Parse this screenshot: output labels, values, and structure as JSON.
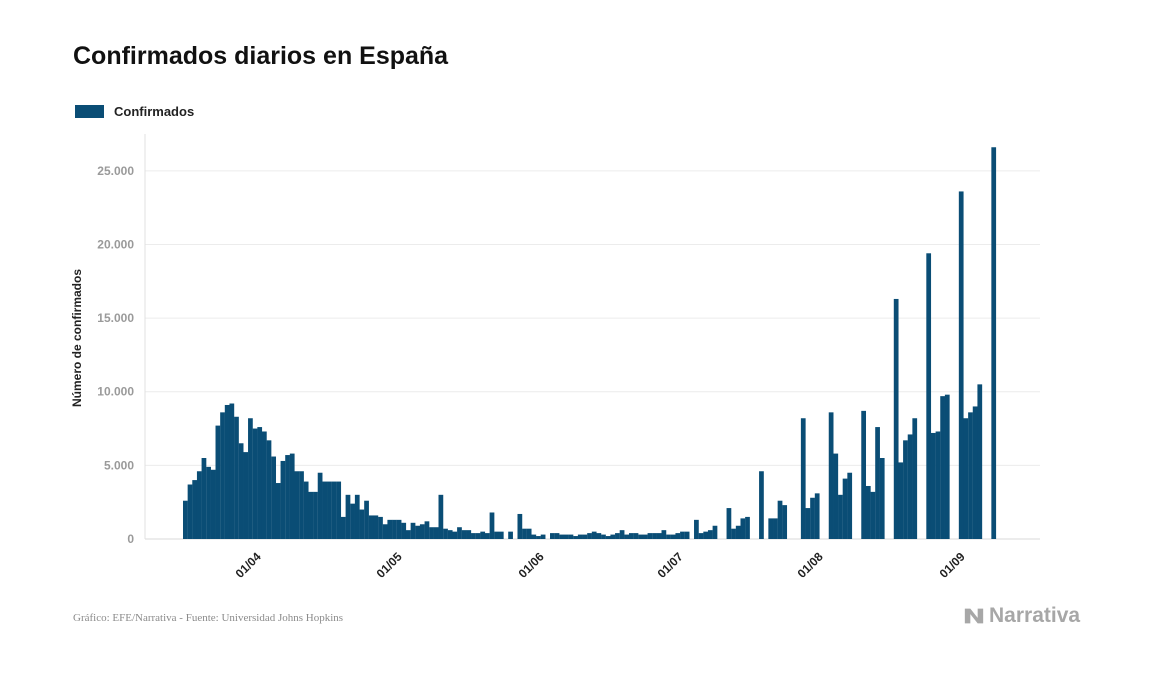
{
  "title": "Confirmados diarios en España",
  "legend": {
    "label": "Confirmados",
    "color": "#0a4d75"
  },
  "chart_data": {
    "type": "bar",
    "title": "Confirmados diarios en España",
    "xlabel": "",
    "ylabel": "Número de confirmados",
    "ylim": [
      0,
      27500
    ],
    "grid": true,
    "legend_position": "top-left",
    "x_ticks": [
      "01/04",
      "01/05",
      "01/06",
      "01/07",
      "01/08",
      "01/09"
    ],
    "y_ticks": [
      "0",
      "5.000",
      "10.000",
      "15.000",
      "20.000",
      "25.000"
    ],
    "series": [
      {
        "name": "Confirmados",
        "color": "#0a4d75",
        "values": [
          2600,
          3700,
          4000,
          4600,
          5500,
          4900,
          4700,
          7700,
          8600,
          9100,
          9200,
          8300,
          6500,
          5900,
          8200,
          7500,
          7600,
          7300,
          6700,
          5600,
          3800,
          5300,
          5700,
          5800,
          4600,
          4600,
          3900,
          3200,
          3200,
          4500,
          3900,
          3900,
          3900,
          3900,
          1500,
          3000,
          2400,
          3000,
          2000,
          2600,
          1600,
          1600,
          1500,
          1000,
          1300,
          1300,
          1300,
          1100,
          600,
          1100,
          900,
          1000,
          1200,
          800,
          800,
          3000,
          700,
          600,
          500,
          800,
          600,
          600,
          400,
          400,
          500,
          400,
          1800,
          500,
          500,
          0,
          500,
          0,
          1700,
          700,
          700,
          300,
          200,
          300,
          0,
          400,
          400,
          300,
          300,
          300,
          200,
          300,
          300,
          400,
          500,
          400,
          300,
          200,
          300,
          400,
          600,
          300,
          400,
          400,
          300,
          300,
          400,
          400,
          400,
          600,
          300,
          300,
          400,
          500,
          500,
          0,
          1300,
          400,
          500,
          600,
          900,
          0,
          0,
          2100,
          700,
          900,
          1400,
          1500,
          0,
          0,
          4600,
          0,
          1400,
          1400,
          2600,
          2300,
          0,
          0,
          0,
          8200,
          2100,
          2800,
          3100,
          0,
          0,
          8600,
          5800,
          3000,
          4100,
          4500,
          0,
          0,
          8700,
          3600,
          3200,
          7600,
          5500,
          0,
          0,
          16300,
          5200,
          6700,
          7100,
          8200,
          0,
          0,
          19400,
          7200,
          7300,
          9700,
          9800,
          0,
          0,
          23600,
          8200,
          8600,
          9000,
          10500,
          0,
          0,
          26600
        ]
      }
    ]
  },
  "footer": {
    "source": "Gráfico: EFE/Narrativa - Fuente: Universidad Johns Hopkins",
    "brand": "Narrativa"
  }
}
